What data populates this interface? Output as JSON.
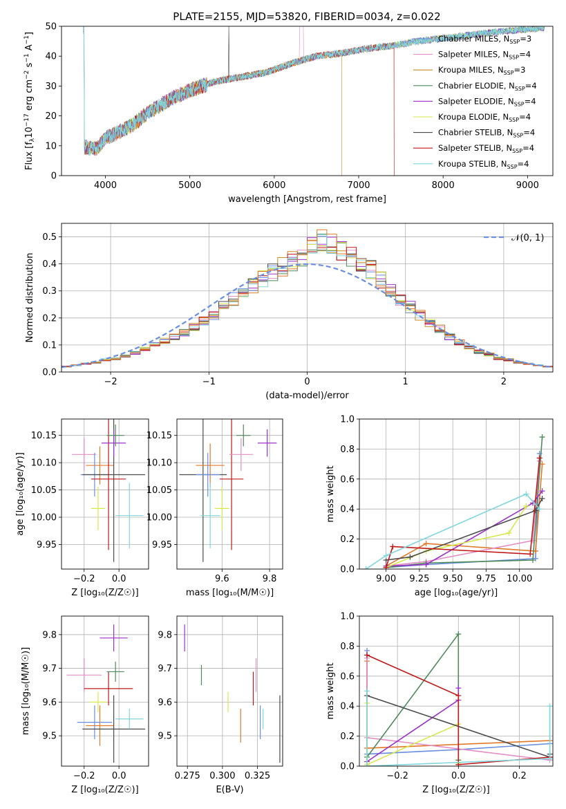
{
  "colors": {
    "chabrier_miles": "#6a8ee0",
    "salpeter_miles": "#e28ec4",
    "kroupa_miles": "#c88a22",
    "chabrier_elodie": "#4f8a5a",
    "salpeter_elodie": "#9b30c8",
    "kroupa_elodie": "#d6e84a",
    "chabrier_stelib": "#4a4a4a",
    "salpeter_stelib": "#c01818",
    "kroupa_stelib": "#7fd6dc",
    "orange": "#e07828",
    "grid": "#b0b0b0"
  },
  "chart_data": [
    {
      "id": "spectrum",
      "type": "line",
      "title": "PLATE=2155, MJD=53820, FIBERID=0034, z=0.022",
      "xlabel": "wavelength [Angstrom, rest frame]",
      "ylabel_parts": [
        "Flux [f",
        "λ",
        "10",
        "−17",
        " erg cm",
        "−2",
        " s",
        "−1",
        " A",
        "−1",
        "]"
      ],
      "xlim": [
        3480,
        9300
      ],
      "ylim": [
        0,
        50
      ],
      "xticks": [
        4000,
        5000,
        6000,
        7000,
        8000,
        9000
      ],
      "yticks": [
        0,
        10,
        20,
        30,
        40,
        50
      ],
      "continuum": {
        "x": [
          3750,
          3900,
          4000,
          4300,
          4500,
          4800,
          5000,
          5300,
          5600,
          5900,
          6200,
          6500,
          6800,
          7100,
          7400,
          7700,
          8000,
          8300,
          8600,
          8900,
          9200
        ],
        "y": [
          9.5,
          9.0,
          12.5,
          16.5,
          21.0,
          26.0,
          28.5,
          31.5,
          33.0,
          34.5,
          37.5,
          40.0,
          41.0,
          42.5,
          43.5,
          45.0,
          46.0,
          47.0,
          48.0,
          48.8,
          49.5
        ]
      },
      "legend": [
        {
          "label": "Chabrier MILES, N",
          "sub": "SSP",
          "eq": "=3",
          "color_key": "chabrier_miles"
        },
        {
          "label": "Salpeter MILES, N",
          "sub": "SSP",
          "eq": "=4",
          "color_key": "salpeter_miles"
        },
        {
          "label": "Kroupa MILES, N",
          "sub": "SSP",
          "eq": "=3",
          "color_key": "kroupa_miles"
        },
        {
          "label": "Chabrier ELODIE, N",
          "sub": "SSP",
          "eq": "=4",
          "color_key": "chabrier_elodie"
        },
        {
          "label": "Salpeter ELODIE, N",
          "sub": "SSP",
          "eq": "=4",
          "color_key": "salpeter_elodie"
        },
        {
          "label": "Kroupa ELODIE, N",
          "sub": "SSP",
          "eq": "=4",
          "color_key": "kroupa_elodie"
        },
        {
          "label": "Chabrier STELIB, N",
          "sub": "SSP",
          "eq": "=4",
          "color_key": "chabrier_stelib"
        },
        {
          "label": "Salpeter STELIB, N",
          "sub": "SSP",
          "eq": "=4",
          "color_key": "salpeter_stelib"
        },
        {
          "label": "Kroupa STELIB, N",
          "sub": "SSP",
          "eq": "=4",
          "color_key": "kroupa_stelib"
        }
      ]
    },
    {
      "id": "residuals",
      "type": "histogram",
      "xlabel": "(data-model)/error",
      "ylabel": "Normed distribution",
      "xlim": [
        -2.5,
        2.5
      ],
      "ylim": [
        0,
        0.55
      ],
      "xticks": [
        -2,
        -1,
        0,
        1,
        2
      ],
      "yticks": [
        0.0,
        0.1,
        0.2,
        0.3,
        0.4,
        0.5
      ],
      "bin_width": 0.1,
      "bin_start": -2.5,
      "heights": [
        0.02,
        0.025,
        0.03,
        0.035,
        0.045,
        0.05,
        0.06,
        0.07,
        0.085,
        0.1,
        0.115,
        0.13,
        0.145,
        0.165,
        0.19,
        0.21,
        0.24,
        0.27,
        0.3,
        0.32,
        0.345,
        0.37,
        0.39,
        0.41,
        0.43,
        0.47,
        0.49,
        0.47,
        0.45,
        0.43,
        0.41,
        0.38,
        0.34,
        0.3,
        0.27,
        0.24,
        0.21,
        0.18,
        0.16,
        0.13,
        0.11,
        0.09,
        0.075,
        0.065,
        0.05,
        0.045,
        0.035,
        0.03,
        0.025,
        0.02
      ],
      "legend_label": "𝒩(0, 1)"
    },
    {
      "id": "age_vs_Z",
      "type": "errorbar",
      "xlabel": "Z [log₁₀(Z/Z☉)]",
      "ylabel": "age  [log₁₀(age/yr)]",
      "xlim": [
        -0.33,
        0.17
      ],
      "ylim": [
        9.905,
        10.18
      ],
      "xticks": [
        -0.2,
        0.0
      ],
      "yticks": [
        9.95,
        10.0,
        10.05,
        10.1,
        10.15
      ],
      "points": [
        {
          "x": -0.2,
          "y": 10.115,
          "xerr": 0.07,
          "yerr": 0.03,
          "color_key": "salpeter_miles"
        },
        {
          "x": -0.11,
          "y": 10.095,
          "xerr": 0.08,
          "yerr": 0.035,
          "color_key": "orange"
        },
        {
          "x": -0.14,
          "y": 10.078,
          "xerr": 0.08,
          "yerr": 0.04,
          "color_key": "chabrier_miles"
        },
        {
          "x": -0.03,
          "y": 10.078,
          "xerr": 0.18,
          "yerr": 0.16,
          "color_key": "chabrier_stelib"
        },
        {
          "x": -0.06,
          "y": 10.07,
          "xerr": 0.1,
          "yerr": 0.13,
          "color_key": "salpeter_stelib"
        },
        {
          "x": -0.03,
          "y": 10.136,
          "xerr": 0.07,
          "yerr": 0.025,
          "color_key": "salpeter_elodie"
        },
        {
          "x": -0.02,
          "y": 10.15,
          "xerr": 0.05,
          "yerr": 0.02,
          "color_key": "chabrier_elodie"
        },
        {
          "x": -0.12,
          "y": 10.016,
          "xerr": 0.04,
          "yerr": 0.04,
          "color_key": "kroupa_elodie"
        },
        {
          "x": 0.06,
          "y": 10.003,
          "xerr": 0.08,
          "yerr": 0.06,
          "color_key": "kroupa_stelib"
        }
      ]
    },
    {
      "id": "age_vs_mass",
      "type": "errorbar",
      "xlabel": "mass [log₁₀(M/M☉)]",
      "ylabel": "",
      "xlim": [
        9.41,
        9.855
      ],
      "ylim": [
        9.905,
        10.18
      ],
      "xticks": [
        9.4,
        9.6,
        9.8
      ],
      "yticks": [
        9.95,
        10.0,
        10.05,
        10.1,
        10.15
      ],
      "points": [
        {
          "x": 9.52,
          "y": 10.078,
          "xerr": 0.1,
          "yerr": 0.16,
          "color_key": "chabrier_stelib"
        },
        {
          "x": 9.55,
          "y": 10.095,
          "xerr": 0.06,
          "yerr": 0.04,
          "color_key": "orange"
        },
        {
          "x": 9.54,
          "y": 10.078,
          "xerr": 0.05,
          "yerr": 0.04,
          "color_key": "chabrier_miles"
        },
        {
          "x": 9.64,
          "y": 10.07,
          "xerr": 0.05,
          "yerr": 0.13,
          "color_key": "salpeter_stelib"
        },
        {
          "x": 9.68,
          "y": 10.115,
          "xerr": 0.05,
          "yerr": 0.03,
          "color_key": "salpeter_miles"
        },
        {
          "x": 9.69,
          "y": 10.15,
          "xerr": 0.03,
          "yerr": 0.02,
          "color_key": "chabrier_elodie"
        },
        {
          "x": 9.79,
          "y": 10.136,
          "xerr": 0.04,
          "yerr": 0.025,
          "color_key": "salpeter_elodie"
        },
        {
          "x": 9.6,
          "y": 10.016,
          "xerr": 0.03,
          "yerr": 0.04,
          "color_key": "kroupa_elodie"
        },
        {
          "x": 9.55,
          "y": 10.003,
          "xerr": 0.04,
          "yerr": 0.06,
          "color_key": "kroupa_stelib"
        }
      ]
    },
    {
      "id": "weight_vs_age",
      "type": "line",
      "xlabel": "age  [log₁₀(age/yr)]",
      "ylabel": "mass weight",
      "xlim": [
        8.8,
        10.25
      ],
      "ylim": [
        0,
        1.0
      ],
      "xticks": [
        9.0,
        9.25,
        9.5,
        9.75,
        10.0
      ],
      "yticks": [
        0.0,
        0.2,
        0.4,
        0.6,
        0.8,
        1.0
      ],
      "series": [
        {
          "color_key": "chabrier_miles",
          "x": [
            9.0,
            9.3,
            10.12,
            10.15
          ],
          "y": [
            0.01,
            0.03,
            0.07,
            0.77
          ]
        },
        {
          "color_key": "orange",
          "x": [
            9.0,
            9.3,
            10.12,
            10.17
          ],
          "y": [
            0.02,
            0.17,
            0.12,
            0.7
          ]
        },
        {
          "color_key": "salpeter_miles",
          "x": [
            9.0,
            9.3,
            10.1,
            10.15
          ],
          "y": [
            0.02,
            0.05,
            0.19,
            0.72
          ]
        },
        {
          "color_key": "chabrier_elodie",
          "x": [
            9.0,
            9.3,
            10.1,
            10.17
          ],
          "y": [
            0.01,
            0.04,
            0.06,
            0.88
          ]
        },
        {
          "color_key": "salpeter_elodie",
          "x": [
            9.0,
            9.3,
            10.1,
            10.17
          ],
          "y": [
            0.02,
            0.03,
            0.44,
            0.52
          ]
        },
        {
          "color_key": "kroupa_elodie",
          "x": [
            9.0,
            9.3,
            9.92,
            10.05
          ],
          "y": [
            0.01,
            0.12,
            0.24,
            0.42
          ]
        },
        {
          "color_key": "chabrier_stelib",
          "x": [
            9.0,
            9.18,
            10.12,
            10.17
          ],
          "y": [
            0.06,
            0.08,
            0.39,
            0.47
          ]
        },
        {
          "color_key": "salpeter_stelib",
          "x": [
            9.0,
            9.05,
            10.08,
            10.15
          ],
          "y": [
            0.01,
            0.15,
            0.1,
            0.74
          ]
        },
        {
          "color_key": "kroupa_stelib",
          "x": [
            8.85,
            9.0,
            10.05,
            10.15
          ],
          "y": [
            0.0,
            0.09,
            0.5,
            0.4
          ]
        }
      ]
    },
    {
      "id": "mass_vs_Z",
      "type": "errorbar",
      "xlabel": "Z [log₁₀(Z/Z☉)]",
      "ylabel": "mass  [log₁₀(M/M☉)]",
      "xlim": [
        -0.33,
        0.17
      ],
      "ylim": [
        9.41,
        9.855
      ],
      "xticks": [
        -0.2,
        0.0
      ],
      "yticks": [
        9.5,
        9.6,
        9.7,
        9.8
      ],
      "points": [
        {
          "x": -0.2,
          "y": 9.68,
          "xerr": 0.1,
          "yerr": 0.05,
          "color_key": "salpeter_miles"
        },
        {
          "x": -0.11,
          "y": 9.53,
          "xerr": 0.08,
          "yerr": 0.06,
          "color_key": "orange"
        },
        {
          "x": -0.14,
          "y": 9.54,
          "xerr": 0.1,
          "yerr": 0.05,
          "color_key": "chabrier_miles"
        },
        {
          "x": -0.03,
          "y": 9.52,
          "xerr": 0.18,
          "yerr": 0.1,
          "color_key": "chabrier_stelib"
        },
        {
          "x": -0.06,
          "y": 9.64,
          "xerr": 0.14,
          "yerr": 0.05,
          "color_key": "salpeter_stelib"
        },
        {
          "x": -0.03,
          "y": 9.79,
          "xerr": 0.08,
          "yerr": 0.04,
          "color_key": "salpeter_elodie"
        },
        {
          "x": -0.02,
          "y": 9.69,
          "xerr": 0.05,
          "yerr": 0.03,
          "color_key": "chabrier_elodie"
        },
        {
          "x": -0.12,
          "y": 9.6,
          "xerr": 0.05,
          "yerr": 0.03,
          "color_key": "kroupa_elodie"
        },
        {
          "x": 0.06,
          "y": 9.55,
          "xerr": 0.08,
          "yerr": 0.03,
          "color_key": "kroupa_stelib"
        }
      ]
    },
    {
      "id": "mass_vs_ebv",
      "type": "errorbar",
      "xlabel": "E(B-V)",
      "ylabel": "",
      "xlim": [
        0.2675,
        0.343
      ],
      "ylim": [
        9.41,
        9.855
      ],
      "xticks": [
        0.275,
        0.3,
        0.325
      ],
      "yticks": [
        9.5,
        9.6,
        9.7,
        9.8
      ],
      "points": [
        {
          "x": 0.273,
          "y": 9.79,
          "xerr": 0,
          "yerr": 0.04,
          "color_key": "salpeter_elodie"
        },
        {
          "x": 0.285,
          "y": 9.68,
          "xerr": 0,
          "yerr": 0.03,
          "color_key": "chabrier_elodie"
        },
        {
          "x": 0.304,
          "y": 9.6,
          "xerr": 0,
          "yerr": 0.03,
          "color_key": "kroupa_elodie"
        },
        {
          "x": 0.313,
          "y": 9.53,
          "xerr": 0,
          "yerr": 0.05,
          "color_key": "orange"
        },
        {
          "x": 0.322,
          "y": 9.64,
          "xerr": 0,
          "yerr": 0.05,
          "color_key": "salpeter_stelib"
        },
        {
          "x": 0.324,
          "y": 9.68,
          "xerr": 0,
          "yerr": 0.05,
          "color_key": "salpeter_miles"
        },
        {
          "x": 0.327,
          "y": 9.54,
          "xerr": 0,
          "yerr": 0.05,
          "color_key": "chabrier_miles"
        },
        {
          "x": 0.329,
          "y": 9.55,
          "xerr": 0,
          "yerr": 0.03,
          "color_key": "kroupa_stelib"
        },
        {
          "x": 0.341,
          "y": 9.52,
          "xerr": 0,
          "yerr": 0.1,
          "color_key": "chabrier_stelib"
        }
      ]
    },
    {
      "id": "weight_vs_Z",
      "type": "line",
      "xlabel": "Z [log₁₀(Z/Z☉)]",
      "ylabel": "mass weight",
      "xlim": [
        -0.325,
        0.31
      ],
      "ylim": [
        0,
        1.0
      ],
      "xticks": [
        -0.2,
        0.0,
        0.2
      ],
      "yticks": [
        0.0,
        0.2,
        0.4,
        0.6,
        0.8,
        1.0
      ],
      "series": [
        {
          "color_key": "chabrier_miles",
          "x": [
            -0.3,
            -0.3,
            0.0,
            0.3
          ],
          "y": [
            0.77,
            0.08,
            0.11,
            0.15
          ]
        },
        {
          "color_key": "orange",
          "x": [
            -0.3,
            -0.3,
            0.3
          ],
          "y": [
            0.7,
            0.12,
            0.17
          ]
        },
        {
          "color_key": "salpeter_miles",
          "x": [
            -0.3,
            -0.3,
            0.3
          ],
          "y": [
            0.72,
            0.19,
            0.04
          ]
        },
        {
          "color_key": "chabrier_elodie",
          "x": [
            -0.3,
            0.0,
            0.0
          ],
          "y": [
            0.06,
            0.88,
            0.04
          ]
        },
        {
          "color_key": "salpeter_elodie",
          "x": [
            -0.3,
            0.0,
            0.0
          ],
          "y": [
            0.03,
            0.44,
            0.52
          ]
        },
        {
          "color_key": "kroupa_elodie",
          "x": [
            -0.3,
            -0.3,
            0.0,
            0.0
          ],
          "y": [
            0.42,
            0.01,
            0.28,
            0.02
          ]
        },
        {
          "color_key": "chabrier_stelib",
          "x": [
            -0.3,
            0.3,
            0.3
          ],
          "y": [
            0.47,
            0.06,
            0.08
          ]
        },
        {
          "color_key": "salpeter_stelib",
          "x": [
            -0.3,
            0.0,
            0.0,
            0.3
          ],
          "y": [
            0.74,
            0.47,
            0.01,
            0.06
          ]
        },
        {
          "color_key": "kroupa_stelib",
          "x": [
            -0.3,
            -0.3,
            0.3,
            0.3
          ],
          "y": [
            0.5,
            0.0,
            0.05,
            0.4
          ]
        }
      ]
    }
  ]
}
